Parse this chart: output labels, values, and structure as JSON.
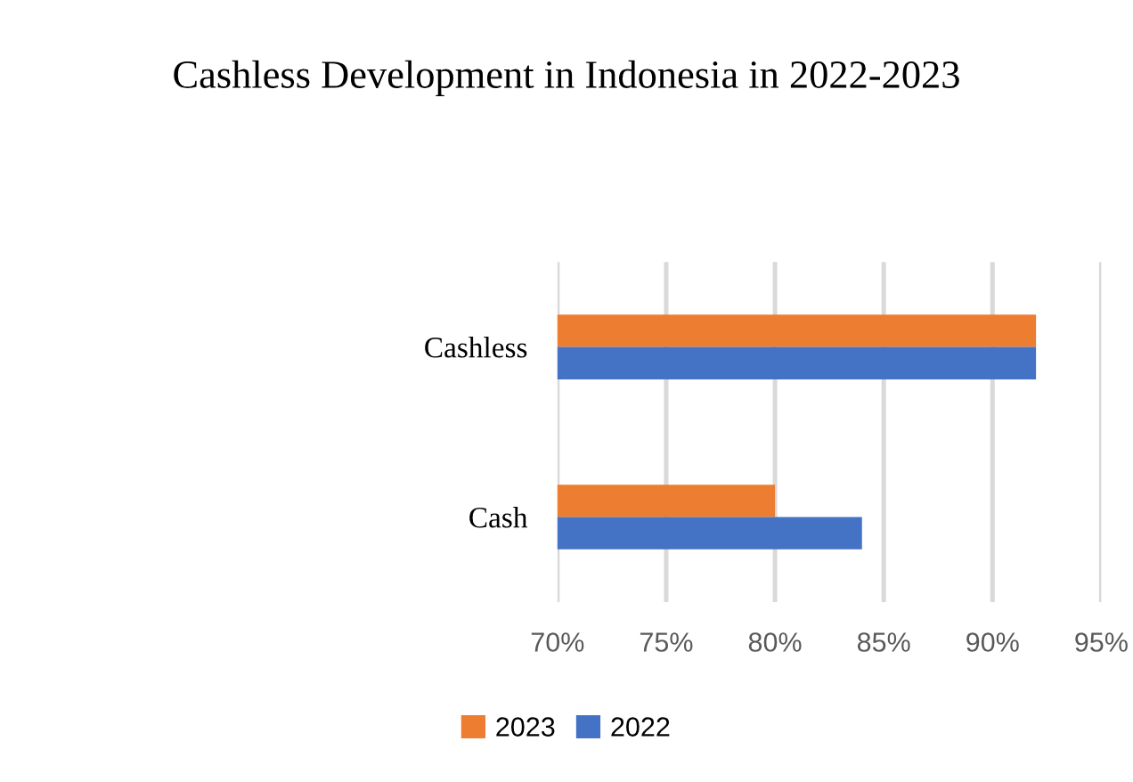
{
  "chart_data": {
    "type": "bar",
    "orientation": "horizontal",
    "title": "Cashless Development in Indonesia in 2022-2023",
    "categories": [
      "Cashless",
      "Cash"
    ],
    "series": [
      {
        "name": "2023",
        "color": "#ed7d31",
        "values": [
          92,
          80
        ]
      },
      {
        "name": "2022",
        "color": "#4472c4",
        "values": [
          92,
          84
        ]
      }
    ],
    "xlim": [
      70,
      95
    ],
    "xticks": [
      {
        "value": 70,
        "label": "70%"
      },
      {
        "value": 75,
        "label": "75%"
      },
      {
        "value": 80,
        "label": "80%"
      },
      {
        "value": 85,
        "label": "85%"
      },
      {
        "value": 90,
        "label": "90%"
      },
      {
        "value": 95,
        "label": "95%"
      }
    ],
    "grid": "x",
    "legend": "bottom"
  }
}
